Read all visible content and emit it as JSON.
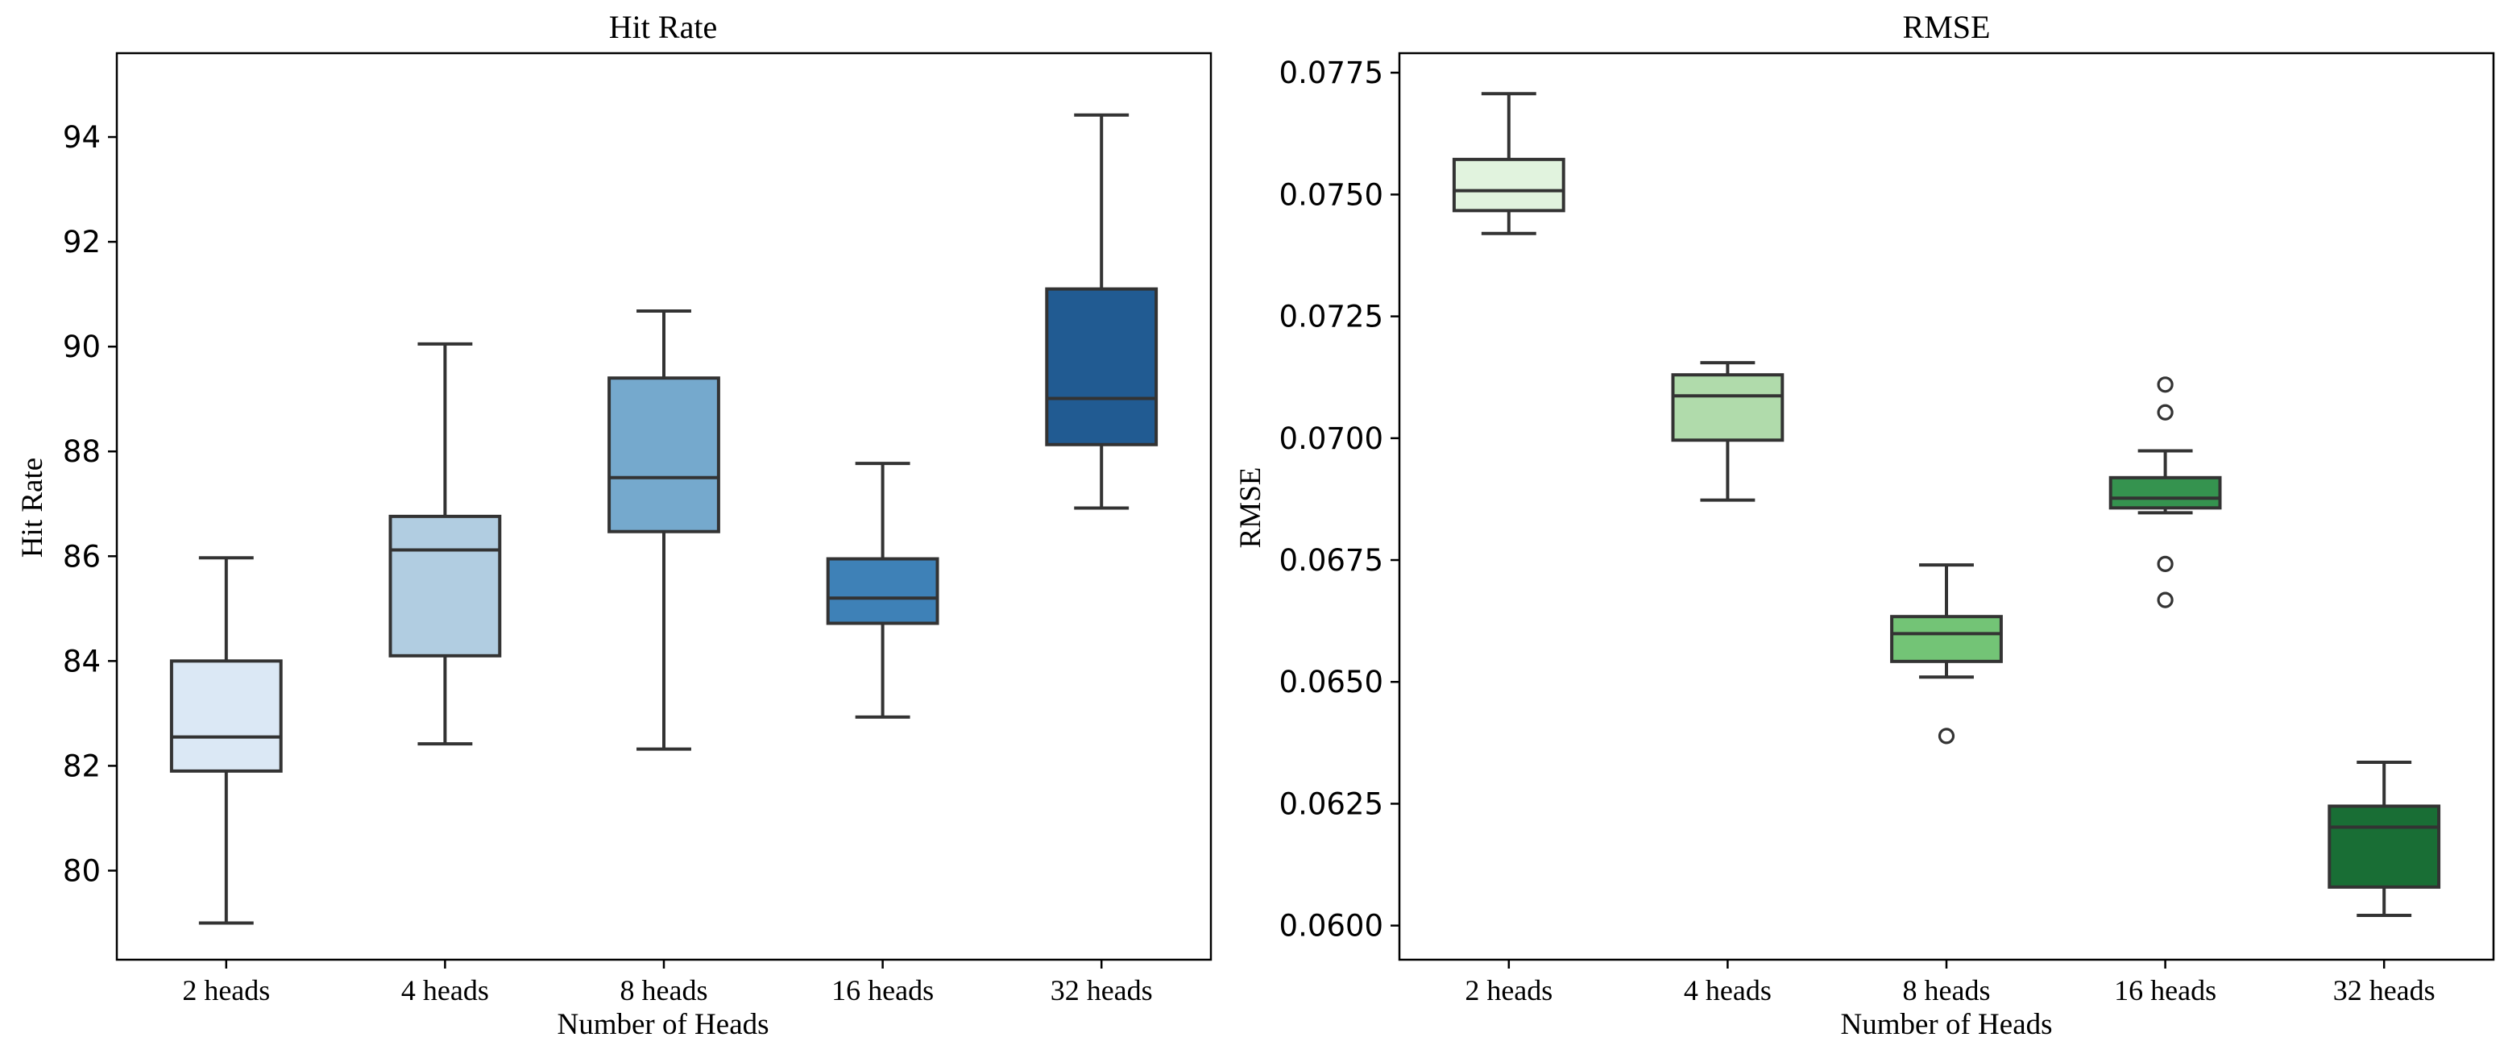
{
  "chart_data": [
    {
      "type": "box",
      "title": "Hit Rate",
      "xlabel": "Number of Heads",
      "ylabel": "Hit Rate",
      "ylim": [
        78.3,
        95.6
      ],
      "yticks": [
        80,
        82,
        84,
        86,
        88,
        90,
        92,
        94
      ],
      "ytick_labels": [
        "80",
        "82",
        "84",
        "86",
        "88",
        "90",
        "92",
        "94"
      ],
      "categories": [
        "2 heads",
        "4 heads",
        "8 heads",
        "16 heads",
        "32 heads"
      ],
      "boxes": [
        {
          "min": 79.0,
          "q1": 81.9,
          "median": 82.55,
          "q3": 84.0,
          "max": 85.97,
          "color": "#dbe8f5",
          "fliers": []
        },
        {
          "min": 82.42,
          "q1": 84.1,
          "median": 86.12,
          "q3": 86.76,
          "max": 90.05,
          "color": "#b1cde1",
          "fliers": []
        },
        {
          "min": 82.32,
          "q1": 86.47,
          "median": 87.5,
          "q3": 89.4,
          "max": 90.68,
          "color": "#75a9cd",
          "fliers": []
        },
        {
          "min": 82.93,
          "q1": 84.72,
          "median": 85.2,
          "q3": 85.95,
          "max": 87.77,
          "color": "#3e81b7",
          "fliers": []
        },
        {
          "min": 86.92,
          "q1": 88.13,
          "median": 89.01,
          "q3": 91.1,
          "max": 94.42,
          "color": "#215b92",
          "fliers": []
        }
      ]
    },
    {
      "type": "box",
      "title": "RMSE",
      "xlabel": "Number of Heads",
      "ylabel": "RMSE",
      "ylim": [
        0.0593,
        0.0779
      ],
      "yticks": [
        0.06,
        0.0625,
        0.065,
        0.0675,
        0.07,
        0.0725,
        0.075,
        0.0775
      ],
      "ytick_labels": [
        "0.0600",
        "0.0625",
        "0.0650",
        "0.0675",
        "0.0700",
        "0.0725",
        "0.0750",
        "0.0775"
      ],
      "categories": [
        "2 heads",
        "4 heads",
        "8 heads",
        "16 heads",
        "32 heads"
      ],
      "boxes": [
        {
          "min": 0.0742,
          "q1": 0.07467,
          "median": 0.07508,
          "q3": 0.07572,
          "max": 0.07707,
          "color": "#e1f3de",
          "fliers": []
        },
        {
          "min": 0.06873,
          "q1": 0.06996,
          "median": 0.07087,
          "q3": 0.0713,
          "max": 0.07155,
          "color": "#b0dbab",
          "fliers": []
        },
        {
          "min": 0.0651,
          "q1": 0.06542,
          "median": 0.06599,
          "q3": 0.06634,
          "max": 0.0674,
          "color": "#73c476",
          "fliers": [
            0.06389
          ]
        },
        {
          "min": 0.06847,
          "q1": 0.06857,
          "median": 0.06877,
          "q3": 0.06919,
          "max": 0.06974,
          "color": "#35934f",
          "fliers": [
            0.0711,
            0.07053,
            0.06742,
            0.06668
          ]
        },
        {
          "min": 0.06021,
          "q1": 0.06079,
          "median": 0.06202,
          "q3": 0.06245,
          "max": 0.06335,
          "color": "#196e35",
          "fliers": []
        }
      ]
    }
  ]
}
